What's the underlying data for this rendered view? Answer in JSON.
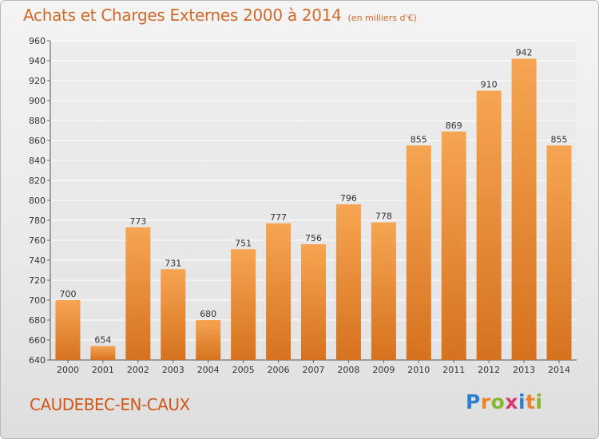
{
  "title": "Achats et Charges Externes 2000 à 2014",
  "subtitle": "(en milliers d'€)",
  "commune": "CAUDEBEC-EN-CAUX",
  "logo": {
    "letters": [
      "P",
      "r",
      "o",
      "x",
      "i",
      "t",
      "i"
    ],
    "colors": [
      "#2f7fd0",
      "#e8862a",
      "#86b82f",
      "#d93a6b",
      "#2f7fd0",
      "#e8862a",
      "#86b82f"
    ]
  },
  "chart_data": {
    "type": "bar",
    "categories": [
      "2000",
      "2001",
      "2002",
      "2003",
      "2004",
      "2005",
      "2006",
      "2007",
      "2008",
      "2009",
      "2010",
      "2011",
      "2012",
      "2013",
      "2014"
    ],
    "values": [
      700,
      654,
      773,
      731,
      680,
      751,
      777,
      756,
      796,
      778,
      855,
      869,
      910,
      942,
      855
    ],
    "title": "Achats et Charges Externes 2000 à 2014",
    "xlabel": "",
    "ylabel": "",
    "ylim": [
      640,
      960
    ],
    "yticks": [
      640,
      660,
      680,
      700,
      720,
      740,
      760,
      780,
      800,
      820,
      840,
      860,
      880,
      900,
      920,
      940,
      960
    ],
    "grid": true,
    "bar_color_top": "#f6a552",
    "bar_color_bottom": "#d6721f"
  }
}
